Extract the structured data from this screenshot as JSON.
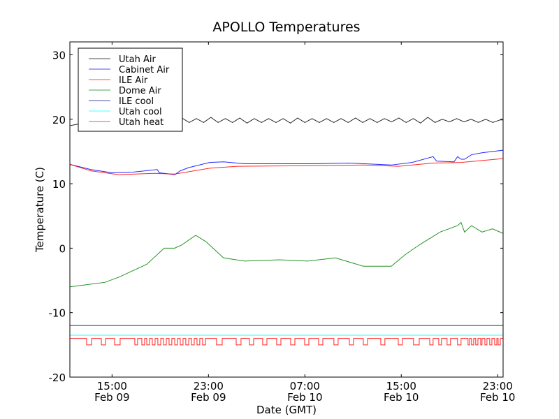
{
  "chart_data": {
    "type": "line",
    "title": "APOLLO Temperatures",
    "xlabel": "Date (GMT)",
    "ylabel": "Temperature (C)",
    "x_units": "hours since Feb 09 00:00 GMT",
    "xlim": [
      11.5,
      47.45
    ],
    "ylim": [
      -20,
      32
    ],
    "yticks": [
      -20,
      -10,
      0,
      10,
      20,
      30
    ],
    "ytick_labels": [
      "-20",
      "-10",
      "0",
      "10",
      "20",
      "30"
    ],
    "xticks": [
      15,
      23,
      31,
      39,
      47
    ],
    "xtick_labels": [
      [
        "15:00",
        "Feb 09"
      ],
      [
        "23:00",
        "Feb 09"
      ],
      [
        "07:00",
        "Feb 10"
      ],
      [
        "15:00",
        "Feb 10"
      ],
      [
        "23:00",
        "Feb 10"
      ]
    ],
    "grid": false,
    "legend_position": "top-left",
    "series": [
      {
        "name": "Utah Air",
        "color": "#000000",
        "x_start": 13.0,
        "x_step": 0.6,
        "start_points": [
          [
            11.5,
            19.0
          ],
          [
            12.3,
            19.3
          ]
        ],
        "values": [
          19.6,
          20.1,
          19.5,
          20.1,
          19.5,
          20.2,
          19.5,
          20.1,
          19.5,
          20.1,
          19.4,
          20.1,
          19.5,
          20.2,
          19.5,
          20.1,
          19.5,
          20.3,
          19.5,
          20.1,
          19.5,
          20.2,
          19.4,
          20.1,
          19.5,
          20.1,
          19.5,
          20.1,
          19.4,
          20.2,
          19.5,
          20.1,
          19.5,
          20.1,
          19.5,
          20.1,
          19.5,
          20.2,
          19.5,
          20.1,
          19.5,
          20.1,
          19.6,
          20.2,
          19.5,
          20.1,
          19.4,
          20.3,
          19.5,
          20.0,
          19.6,
          20.1,
          19.6,
          20.0,
          19.5,
          20.0,
          19.5,
          19.9
        ]
      },
      {
        "name": "Cabinet Air",
        "color": "#0000ff",
        "points": [
          [
            11.5,
            13.0
          ],
          [
            13.24,
            12.2
          ],
          [
            14.98,
            11.7
          ],
          [
            16.72,
            11.8
          ],
          [
            18.75,
            12.2
          ],
          [
            18.92,
            11.7
          ],
          [
            20.2,
            11.4
          ],
          [
            20.66,
            12.0
          ],
          [
            21.36,
            12.5
          ],
          [
            23.1,
            13.3
          ],
          [
            24.25,
            13.4
          ],
          [
            26.0,
            13.1
          ],
          [
            31.79,
            13.1
          ],
          [
            34.69,
            13.2
          ],
          [
            38.17,
            12.9
          ],
          [
            39.9,
            13.3
          ],
          [
            41.64,
            14.2
          ],
          [
            41.93,
            13.5
          ],
          [
            43.38,
            13.4
          ],
          [
            43.67,
            14.2
          ],
          [
            43.96,
            13.8
          ],
          [
            44.25,
            13.8
          ],
          [
            44.83,
            14.5
          ],
          [
            45.7,
            14.8
          ],
          [
            47.44,
            15.2
          ]
        ]
      },
      {
        "name": "ILE Air",
        "color": "#ff0000",
        "points": [
          [
            11.5,
            13.0
          ],
          [
            13.24,
            12.0
          ],
          [
            15.56,
            11.4
          ],
          [
            18.46,
            11.6
          ],
          [
            20.2,
            11.5
          ],
          [
            23.1,
            12.4
          ],
          [
            25.41,
            12.7
          ],
          [
            31.79,
            12.8
          ],
          [
            35.85,
            12.9
          ],
          [
            38.75,
            12.7
          ],
          [
            41.64,
            13.2
          ],
          [
            43.96,
            13.3
          ],
          [
            47.44,
            13.9
          ]
        ]
      },
      {
        "name": "Dome Air",
        "color": "#008000",
        "points": [
          [
            11.5,
            -6.0
          ],
          [
            14.4,
            -5.3
          ],
          [
            15.56,
            -4.5
          ],
          [
            17.88,
            -2.5
          ],
          [
            19.33,
            0.0
          ],
          [
            20.2,
            0.0
          ],
          [
            20.78,
            0.5
          ],
          [
            21.94,
            2.0
          ],
          [
            22.8,
            1.0
          ],
          [
            24.25,
            -1.5
          ],
          [
            26.0,
            -2.0
          ],
          [
            28.89,
            -1.8
          ],
          [
            31.21,
            -2.0
          ],
          [
            33.53,
            -1.5
          ],
          [
            35.85,
            -2.8
          ],
          [
            38.17,
            -2.8
          ],
          [
            39.33,
            -1.0
          ],
          [
            40.49,
            0.5
          ],
          [
            42.22,
            2.5
          ],
          [
            43.67,
            3.5
          ],
          [
            43.96,
            4.0
          ],
          [
            44.25,
            2.5
          ],
          [
            44.83,
            3.5
          ],
          [
            45.7,
            2.5
          ],
          [
            46.57,
            3.0
          ],
          [
            47.44,
            2.3
          ]
        ]
      },
      {
        "name": "ILE cool",
        "color": "#00007f",
        "points": [
          [
            11.5,
            -12.0
          ],
          [
            47.44,
            -12.0
          ]
        ]
      },
      {
        "name": "Utah cool",
        "color": "#00ffff",
        "points": [
          [
            11.5,
            -13.5
          ],
          [
            47.44,
            -13.5
          ]
        ]
      },
      {
        "name": "Utah heat",
        "color": "#ff0000",
        "high": -14,
        "low": -15,
        "low_intervals": [
          [
            12.89,
            13.3
          ],
          [
            14.11,
            14.46
          ],
          [
            15.21,
            15.67
          ],
          [
            16.89,
            17.12
          ],
          [
            17.47,
            17.7
          ],
          [
            17.88,
            18.11
          ],
          [
            18.34,
            18.57
          ],
          [
            18.8,
            19.04
          ],
          [
            19.27,
            19.5
          ],
          [
            19.73,
            19.96
          ],
          [
            20.2,
            20.43
          ],
          [
            20.66,
            20.89
          ],
          [
            21.12,
            21.36
          ],
          [
            21.59,
            21.82
          ],
          [
            22.05,
            22.28
          ],
          [
            22.51,
            22.75
          ],
          [
            23.67,
            24.14
          ],
          [
            25.3,
            25.7
          ],
          [
            26.4,
            26.75
          ],
          [
            27.5,
            27.85
          ],
          [
            28.66,
            29.01
          ],
          [
            29.82,
            30.17
          ],
          [
            30.98,
            31.33
          ],
          [
            32.14,
            32.49
          ],
          [
            33.41,
            33.76
          ],
          [
            34.69,
            35.04
          ],
          [
            35.85,
            36.2
          ],
          [
            37.3,
            37.64
          ],
          [
            38.75,
            39.09
          ],
          [
            40.02,
            40.49
          ],
          [
            41.36,
            41.64
          ],
          [
            42.11,
            42.34
          ],
          [
            42.8,
            43.09
          ],
          [
            43.67,
            43.96
          ],
          [
            44.54,
            44.66
          ],
          [
            44.83,
            45.01
          ],
          [
            45.18,
            45.36
          ],
          [
            45.59,
            45.7
          ],
          [
            45.94,
            46.11
          ],
          [
            46.34,
            46.52
          ],
          [
            46.75,
            46.93
          ],
          [
            47.04,
            47.22
          ]
        ]
      }
    ]
  }
}
